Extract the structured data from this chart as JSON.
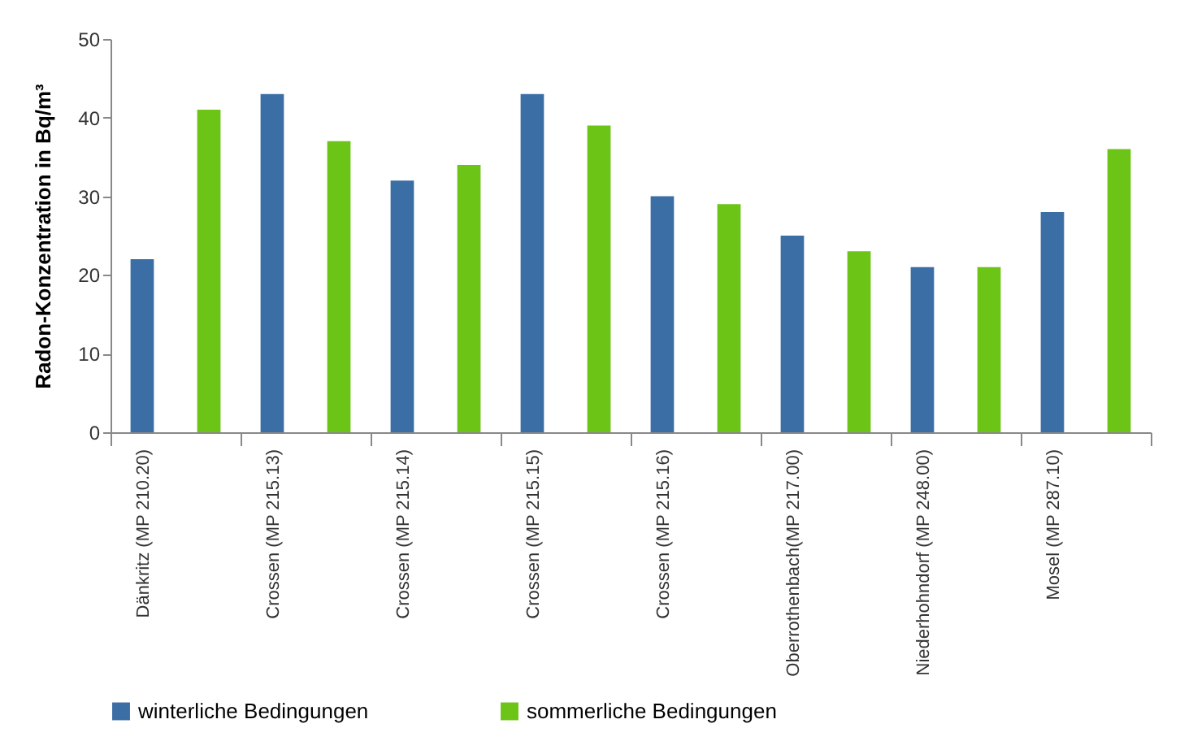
{
  "chart_data": {
    "type": "bar",
    "ylabel": "Radon-Konzentration in Bq/m³",
    "categories": [
      "Dänkritz (MP 210.20)",
      "Crossen (MP 215.13)",
      "Crossen (MP 215.14)",
      "Crossen (MP 215.15)",
      "Crossen (MP 215.16)",
      "Oberrothenbach(MP 217.00)",
      "Niederhohndorf (MP 248.00)",
      "Mosel (MP 287.10)"
    ],
    "series": [
      {
        "name": "winterliche Bedingungen",
        "color": "#3b6ea5",
        "values": [
          22,
          43,
          32,
          43,
          30,
          25,
          21,
          28
        ]
      },
      {
        "name": "sommerliche Bedingungen",
        "color": "#6cc417",
        "values": [
          41,
          37,
          34,
          39,
          29,
          23,
          21,
          36
        ]
      }
    ],
    "ylim": [
      0,
      50
    ],
    "yticks": [
      0,
      10,
      20,
      30,
      40,
      50
    ],
    "grid": false,
    "legend": "bottom"
  }
}
